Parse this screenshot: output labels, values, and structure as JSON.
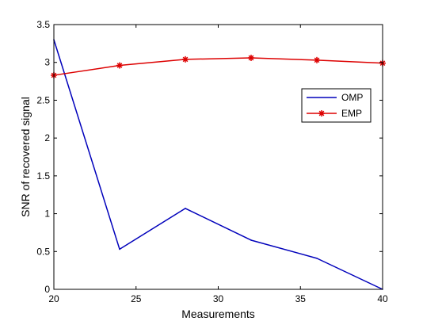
{
  "chart_data": {
    "type": "line",
    "title": "",
    "xlabel": "Measurements",
    "ylabel": "SNR of recovered signal",
    "xlim": [
      20,
      40
    ],
    "ylim": [
      0,
      3.5
    ],
    "xticks": [
      20,
      25,
      30,
      35,
      40
    ],
    "xtick_labels": [
      "20",
      "25",
      "30",
      "35",
      "40"
    ],
    "yticks": [
      0,
      0.5,
      1,
      1.5,
      2,
      2.5,
      3,
      3.5
    ],
    "ytick_labels": [
      "0",
      "0.5",
      "1",
      "1.5",
      "2",
      "2.5",
      "3",
      "3.5"
    ],
    "grid": false,
    "legend_position": "upper-right",
    "series": [
      {
        "name": "OMP",
        "color": "#0000bb",
        "marker": "none",
        "x": [
          20,
          24,
          28,
          32,
          36,
          40
        ],
        "values": [
          3.3,
          0.53,
          1.07,
          0.65,
          0.41,
          0.0
        ]
      },
      {
        "name": "EMP",
        "color": "#dd0000",
        "marker": "star",
        "x": [
          20,
          24,
          28,
          32,
          36,
          40
        ],
        "values": [
          2.83,
          2.96,
          3.04,
          3.06,
          3.03,
          2.99
        ]
      }
    ]
  }
}
